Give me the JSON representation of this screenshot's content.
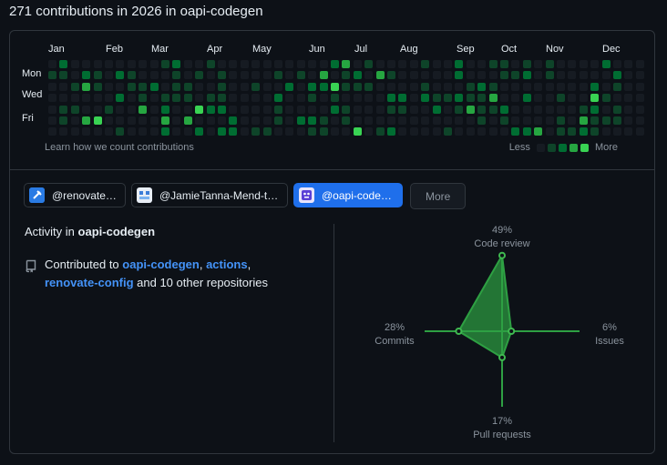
{
  "heading": "271 contributions in 2026 in oapi-codegen",
  "calendar": {
    "months": [
      "Jan",
      "Feb",
      "Mar",
      "Apr",
      "May",
      "Jun",
      "Jul",
      "Aug",
      "Sep",
      "Oct",
      "Nov",
      "Dec"
    ],
    "days": [
      "Mon",
      "Wed",
      "Fri"
    ],
    "learn_link": "Learn how we count contributions",
    "legend_less": "Less",
    "legend_more": "More",
    "colors": [
      "#161b22",
      "#0e4429",
      "#006d32",
      "#26a641",
      "#39d353"
    ]
  },
  "orgs": [
    {
      "label": "@renovatebot",
      "active": false
    },
    {
      "label": "@JamieTanna-Mend-testing",
      "active": false
    },
    {
      "label": "@oapi-codegen",
      "active": true
    }
  ],
  "more_button": "More",
  "activity": {
    "prefix": "Activity in",
    "org": "oapi-codegen"
  },
  "contributed": {
    "prefix": "Contributed to",
    "repo1": "oapi-codegen",
    "sep": ",",
    "repo2": "actions",
    "sep2": ",",
    "repo3": "renovate-config",
    "suffix": "and 10 other repositories"
  },
  "radar": {
    "code_review": {
      "pct": "49%",
      "label": "Code review",
      "value": 49
    },
    "issues": {
      "pct": "6%",
      "label": "Issues",
      "value": 6
    },
    "pull_requests": {
      "pct": "17%",
      "label": "Pull requests",
      "value": 17
    },
    "commits": {
      "pct": "28%",
      "label": "Commits",
      "value": 28
    },
    "color": "#2ea043"
  }
}
